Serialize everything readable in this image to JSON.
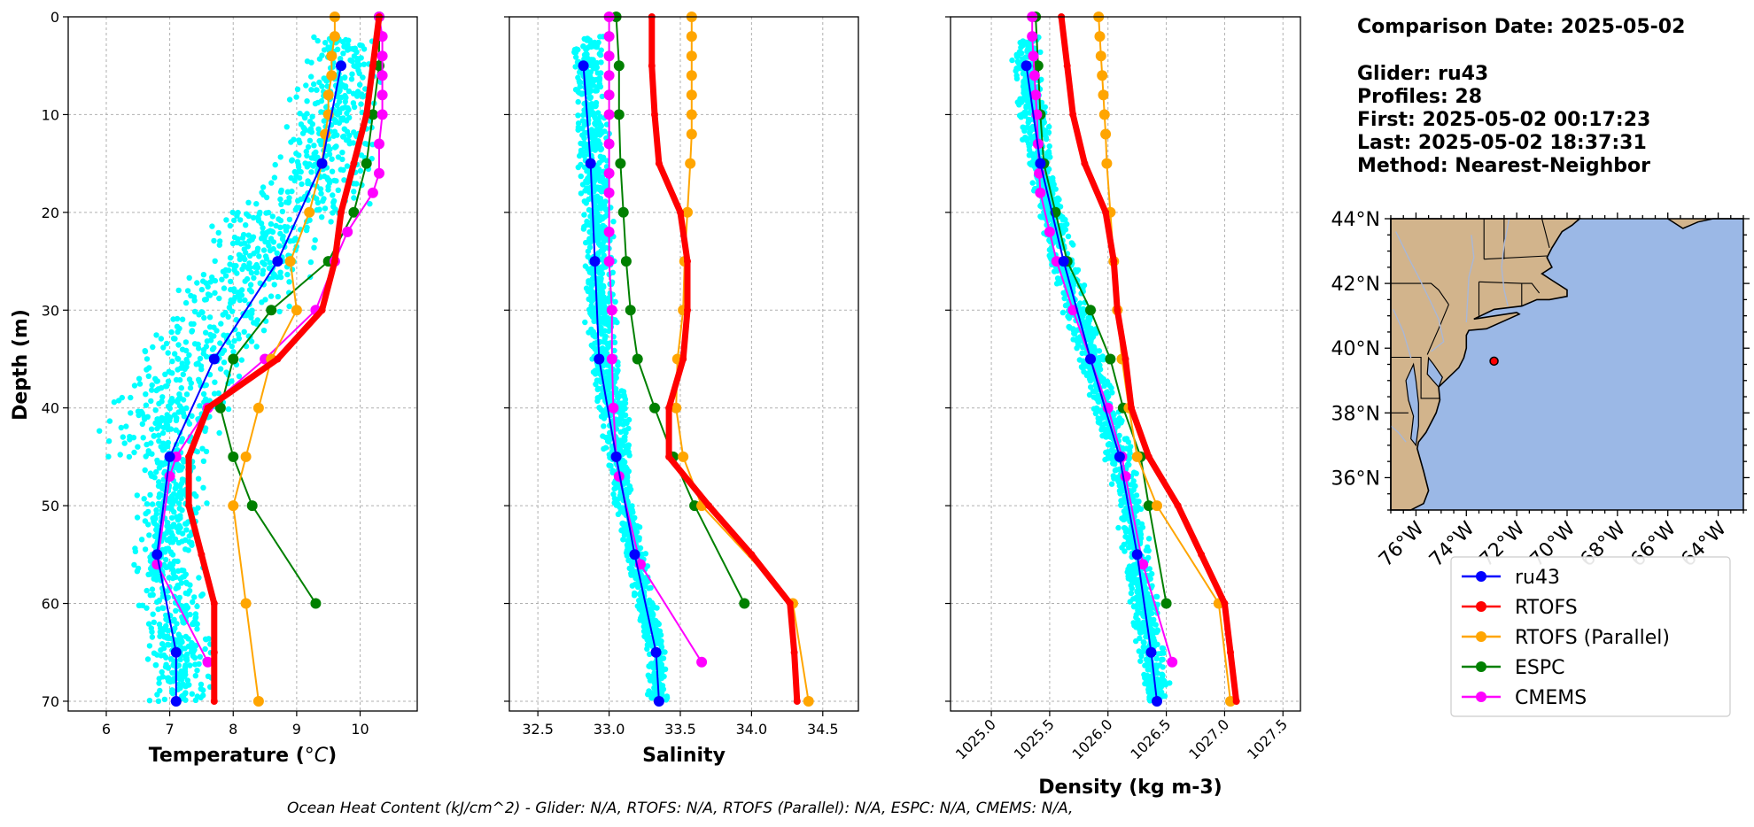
{
  "ylabel": "Depth (m)",
  "info": {
    "comparison_date": "Comparison Date: 2025-05-02",
    "glider": "Glider: ru43",
    "profiles": "Profiles: 28",
    "first": "First: 2025-05-02 00:17:23",
    "last": "Last: 2025-05-02 18:37:31",
    "method": "Method: Nearest-Neighbor"
  },
  "footer": "Ocean Heat Content (kJ/cm^2) - Glider: N/A,  RTOFS: N/A,  RTOFS (Parallel): N/A,  ESPC: N/A,  CMEMS: N/A,",
  "colors": {
    "ru43": "#0000ff",
    "RTOFS": "#ff0000",
    "RTOFS (Parallel)": "#ffa500",
    "ESPC": "#008000",
    "CMEMS": "#ff00ff",
    "glider_points": "#00ffff",
    "land": "#d2b48c",
    "ocean": "#9bb8e6",
    "rivers": "#a9b7d6"
  },
  "legend": [
    "ru43",
    "RTOFS",
    "RTOFS (Parallel)",
    "ESPC",
    "CMEMS"
  ],
  "map": {
    "lat_ticks": [
      "44°N",
      "42°N",
      "40°N",
      "38°N",
      "36°N"
    ],
    "lat_values": [
      44,
      42,
      40,
      38,
      36
    ],
    "lon_ticks": [
      "76°W",
      "74°W",
      "72°W",
      "70°W",
      "68°W",
      "66°W",
      "64°W"
    ],
    "lon_values": [
      -76,
      -74,
      -72,
      -70,
      -68,
      -66,
      -64
    ],
    "extent": {
      "lon": [
        -77,
        -63
      ],
      "lat": [
        35,
        44
      ]
    },
    "glider_position": {
      "lon": -72.9,
      "lat": 39.6
    }
  },
  "chart_data": [
    {
      "type": "line",
      "xlabel": "Temperature (°C)",
      "ylabel": "Depth (m)",
      "xlim": [
        5.4,
        10.9
      ],
      "ylim": [
        71,
        0
      ],
      "xticks": [
        6,
        7,
        8,
        9,
        10
      ],
      "yticks": [
        0,
        10,
        20,
        30,
        40,
        50,
        60,
        70
      ],
      "grid": true,
      "series": [
        {
          "name": "ru43",
          "depth": [
            5,
            15,
            25,
            35,
            45,
            55,
            65,
            70
          ],
          "values": [
            9.7,
            9.4,
            8.7,
            7.7,
            7.0,
            6.8,
            7.1,
            7.1
          ]
        },
        {
          "name": "RTOFS",
          "depth": [
            0,
            5,
            10,
            15,
            20,
            25,
            30,
            35,
            40,
            45,
            50,
            55,
            60,
            65,
            70
          ],
          "values": [
            10.3,
            10.2,
            10.1,
            9.9,
            9.7,
            9.6,
            9.4,
            8.7,
            7.6,
            7.3,
            7.3,
            7.5,
            7.7,
            7.7,
            7.7
          ]
        },
        {
          "name": "RTOFS (Parallel)",
          "depth": [
            0,
            2,
            4,
            6,
            8,
            10,
            12,
            15,
            20,
            25,
            30,
            35,
            40,
            45,
            50,
            60,
            70
          ],
          "values": [
            9.6,
            9.6,
            9.55,
            9.55,
            9.5,
            9.5,
            9.45,
            9.4,
            9.2,
            8.9,
            9.0,
            8.6,
            8.4,
            8.2,
            8.0,
            8.2,
            8.4
          ]
        },
        {
          "name": "ESPC",
          "depth": [
            0,
            5,
            10,
            15,
            20,
            25,
            30,
            35,
            40,
            45,
            50,
            60
          ],
          "values": [
            10.3,
            10.3,
            10.2,
            10.1,
            9.9,
            9.5,
            8.6,
            8.0,
            7.8,
            8.0,
            8.3,
            9.3
          ]
        },
        {
          "name": "CMEMS",
          "depth": [
            0,
            2,
            4,
            6,
            8,
            10,
            13,
            16,
            18,
            22,
            25,
            30,
            35,
            40,
            45,
            47,
            56,
            66
          ],
          "values": [
            10.3,
            10.35,
            10.35,
            10.35,
            10.35,
            10.35,
            10.3,
            10.3,
            10.2,
            9.8,
            9.6,
            9.3,
            8.5,
            7.6,
            7.1,
            7.0,
            6.8,
            7.6
          ]
        }
      ]
    },
    {
      "type": "line",
      "xlabel": "Salinity",
      "xlim": [
        32.3,
        34.75
      ],
      "ylim": [
        71,
        0
      ],
      "xticks": [
        32.5,
        33.0,
        33.5,
        34.0,
        34.5
      ],
      "grid": true,
      "series": [
        {
          "name": "ru43",
          "depth": [
            5,
            15,
            25,
            35,
            45,
            55,
            65,
            70
          ],
          "values": [
            32.82,
            32.87,
            32.9,
            32.93,
            33.05,
            33.18,
            33.33,
            33.35
          ]
        },
        {
          "name": "RTOFS",
          "depth": [
            0,
            5,
            10,
            15,
            20,
            25,
            30,
            35,
            40,
            45,
            50,
            55,
            60,
            65,
            70
          ],
          "values": [
            33.3,
            33.3,
            33.32,
            33.35,
            33.5,
            33.55,
            33.55,
            33.52,
            33.42,
            33.42,
            33.7,
            34.0,
            34.27,
            34.3,
            34.32
          ]
        },
        {
          "name": "RTOFS (Parallel)",
          "depth": [
            0,
            2,
            4,
            6,
            8,
            10,
            12,
            15,
            20,
            25,
            30,
            35,
            40,
            45,
            50,
            60,
            70
          ],
          "values": [
            33.58,
            33.58,
            33.58,
            33.58,
            33.58,
            33.58,
            33.58,
            33.57,
            33.55,
            33.53,
            33.52,
            33.48,
            33.47,
            33.52,
            33.65,
            34.29,
            34.4
          ]
        },
        {
          "name": "ESPC",
          "depth": [
            0,
            5,
            10,
            15,
            20,
            25,
            30,
            35,
            40,
            45,
            50,
            60
          ],
          "values": [
            33.05,
            33.07,
            33.07,
            33.08,
            33.1,
            33.12,
            33.15,
            33.2,
            33.32,
            33.45,
            33.6,
            33.95
          ]
        },
        {
          "name": "CMEMS",
          "depth": [
            0,
            2,
            4,
            6,
            8,
            10,
            13,
            16,
            18,
            22,
            25,
            30,
            35,
            40,
            45,
            47,
            56,
            66
          ],
          "values": [
            33.0,
            33.0,
            33.0,
            33.0,
            33.0,
            33.0,
            33.0,
            33.0,
            33.0,
            33.0,
            33.0,
            33.02,
            33.02,
            33.03,
            33.05,
            33.07,
            33.22,
            33.65
          ]
        }
      ]
    },
    {
      "type": "line",
      "xlabel": "Density (kg m-3)",
      "xlim": [
        1024.65,
        1027.65
      ],
      "ylim": [
        71,
        0
      ],
      "xticks": [
        1025.0,
        1025.5,
        1026.0,
        1026.5,
        1027.0,
        1027.5
      ],
      "grid": true,
      "series": [
        {
          "name": "ru43",
          "depth": [
            5,
            15,
            25,
            35,
            45,
            55,
            65,
            70
          ],
          "values": [
            1025.3,
            1025.42,
            1025.62,
            1025.85,
            1026.1,
            1026.25,
            1026.37,
            1026.42
          ]
        },
        {
          "name": "RTOFS",
          "depth": [
            0,
            5,
            10,
            15,
            20,
            25,
            30,
            35,
            40,
            45,
            50,
            55,
            60,
            65,
            70
          ],
          "values": [
            1025.6,
            1025.65,
            1025.7,
            1025.8,
            1025.98,
            1026.05,
            1026.08,
            1026.15,
            1026.2,
            1026.35,
            1026.6,
            1026.8,
            1027.0,
            1027.05,
            1027.1
          ]
        },
        {
          "name": "RTOFS (Parallel)",
          "depth": [
            0,
            2,
            4,
            6,
            8,
            10,
            12,
            15,
            20,
            25,
            30,
            35,
            40,
            45,
            50,
            60,
            70
          ],
          "values": [
            1025.92,
            1025.93,
            1025.94,
            1025.95,
            1025.96,
            1025.97,
            1025.98,
            1025.99,
            1026.02,
            1026.05,
            1026.08,
            1026.12,
            1026.18,
            1026.25,
            1026.42,
            1026.95,
            1027.05
          ]
        },
        {
          "name": "ESPC",
          "depth": [
            0,
            5,
            10,
            15,
            20,
            25,
            30,
            35,
            40,
            45,
            50,
            60
          ],
          "values": [
            1025.38,
            1025.4,
            1025.42,
            1025.45,
            1025.55,
            1025.65,
            1025.85,
            1026.02,
            1026.13,
            1026.28,
            1026.35,
            1026.5
          ]
        },
        {
          "name": "CMEMS",
          "depth": [
            0,
            2,
            4,
            6,
            8,
            10,
            13,
            16,
            18,
            22,
            25,
            30,
            35,
            40,
            45,
            47,
            56,
            66
          ],
          "values": [
            1025.35,
            1025.35,
            1025.36,
            1025.37,
            1025.38,
            1025.39,
            1025.4,
            1025.41,
            1025.42,
            1025.5,
            1025.56,
            1025.7,
            1025.85,
            1026.0,
            1026.12,
            1026.15,
            1026.3,
            1026.55
          ]
        }
      ]
    }
  ]
}
